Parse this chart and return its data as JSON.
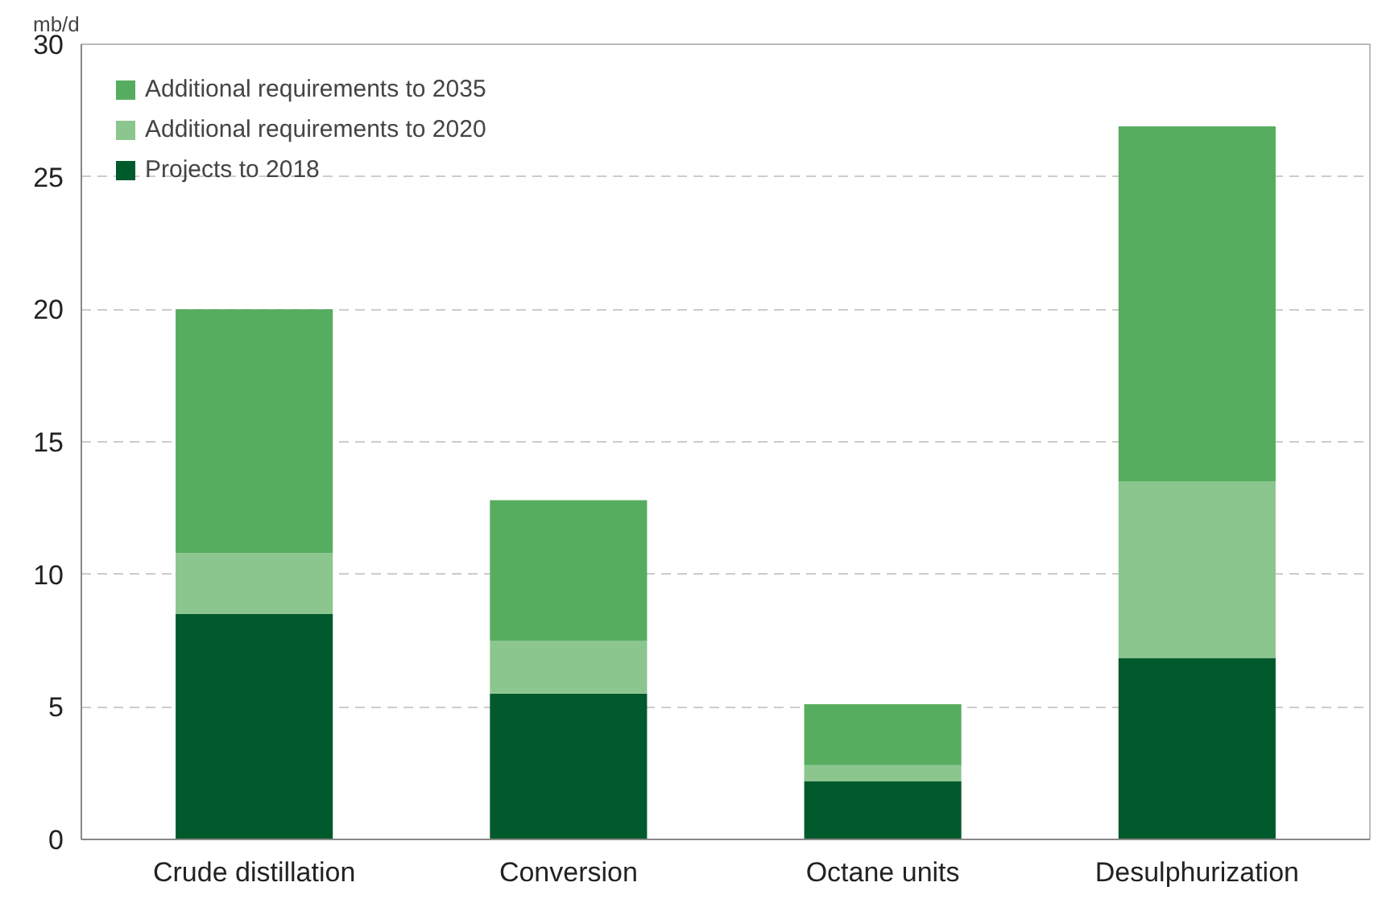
{
  "chart_data": {
    "type": "bar",
    "stacked": true,
    "ylabel": "mb/d",
    "categories": [
      "Crude distillation",
      "Conversion",
      "Octane units",
      "Desulphurization"
    ],
    "series": [
      {
        "name": "Projects to 2018",
        "color": "#005a2b",
        "values": [
          8.5,
          5.5,
          2.2,
          6.85
        ]
      },
      {
        "name": "Additional requirements to 2020",
        "color": "#8bc68e",
        "values": [
          2.3,
          2.0,
          0.6,
          6.65
        ]
      },
      {
        "name": "Additional requirements to 2035",
        "color": "#57ad5f",
        "values": [
          9.2,
          5.3,
          2.3,
          13.4
        ]
      }
    ],
    "ylim": [
      0,
      30
    ],
    "yticks": [
      0,
      5,
      10,
      15,
      20,
      25,
      30
    ],
    "grid": "y",
    "legend": "top left"
  }
}
